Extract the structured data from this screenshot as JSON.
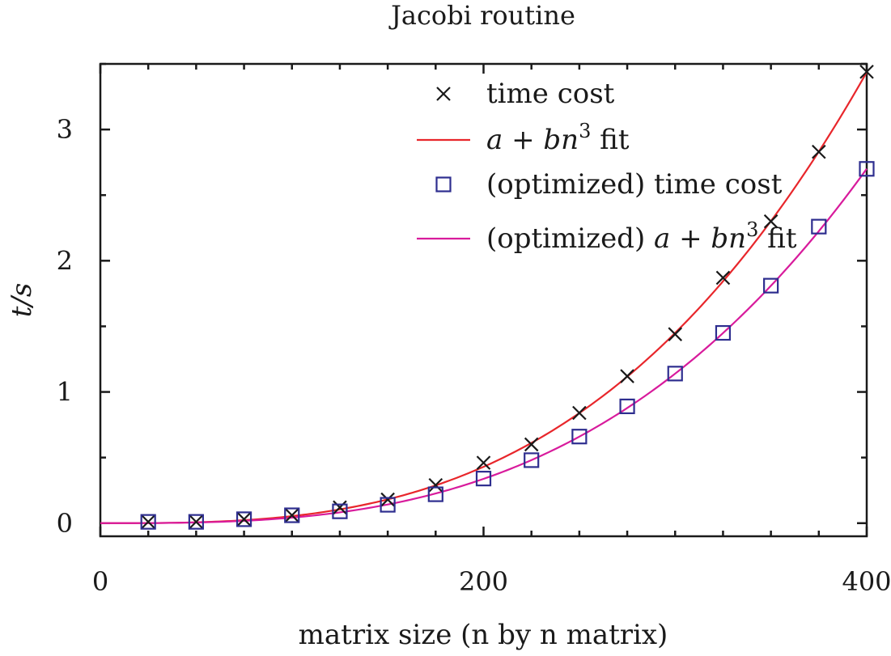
{
  "chart_data": {
    "type": "scatter",
    "title": "Jacobi routine",
    "xlabel": "matrix size (n by n matrix)",
    "ylabel": "t/s",
    "xlim": [
      0,
      400
    ],
    "ylim": [
      -0.1,
      3.5
    ],
    "x_ticks": [
      0,
      200,
      400
    ],
    "y_ticks": [
      0,
      1,
      2,
      3
    ],
    "x_minor_step": 25,
    "y_minor_step": 0.5,
    "grid": false,
    "legend_position": "top-right",
    "series": [
      {
        "name": "time cost",
        "kind": "points",
        "marker": "cross",
        "color": "#1a1a1a",
        "x": [
          25,
          50,
          75,
          100,
          125,
          150,
          175,
          200,
          225,
          250,
          275,
          300,
          325,
          350,
          375,
          400
        ],
        "y": [
          0.01,
          0.01,
          0.03,
          0.06,
          0.12,
          0.18,
          0.29,
          0.46,
          0.6,
          0.84,
          1.12,
          1.44,
          1.87,
          2.3,
          2.83,
          3.44
        ]
      },
      {
        "name": "a + bn³ fit",
        "kind": "curve",
        "color": "#e8262b",
        "a": 0.0,
        "b": 5.37e-08
      },
      {
        "name": "(optimized) time cost",
        "kind": "points",
        "marker": "square",
        "color": "#2e2e8f",
        "x": [
          25,
          50,
          75,
          100,
          125,
          150,
          175,
          200,
          225,
          250,
          275,
          300,
          325,
          350,
          375,
          400
        ],
        "y": [
          0.01,
          0.01,
          0.03,
          0.06,
          0.09,
          0.14,
          0.22,
          0.34,
          0.48,
          0.66,
          0.89,
          1.14,
          1.45,
          1.81,
          2.26,
          2.7
        ]
      },
      {
        "name": "(optimized) a + bn³ fit",
        "kind": "curve",
        "color": "#d81b9c",
        "a": 0.0,
        "b": 4.22e-08
      }
    ]
  }
}
